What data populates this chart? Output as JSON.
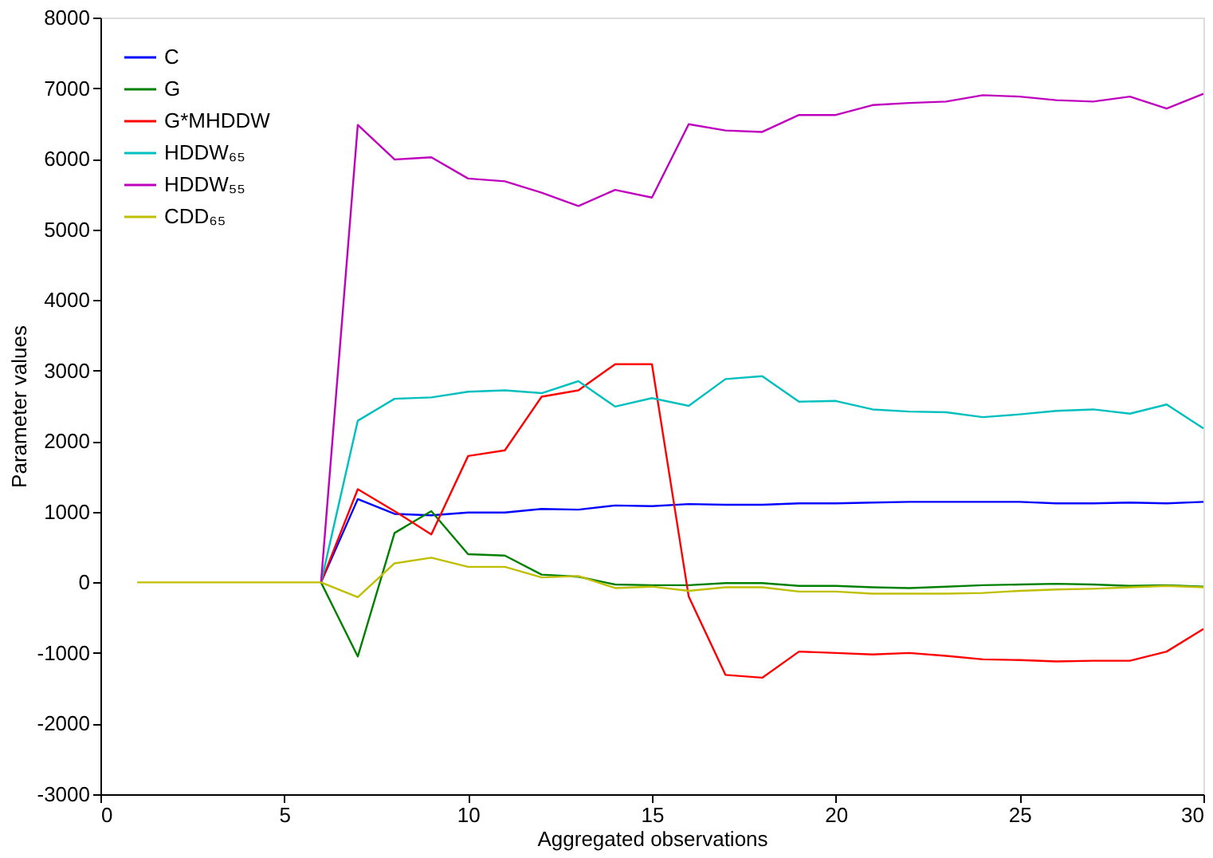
{
  "chart_data": {
    "type": "line",
    "xlabel": "Aggregated observations",
    "ylabel": "Parameter values",
    "x": [
      1,
      2,
      3,
      4,
      5,
      6,
      7,
      8,
      9,
      10,
      11,
      12,
      13,
      14,
      15,
      16,
      17,
      18,
      19,
      20,
      21,
      22,
      23,
      24,
      25,
      26,
      27,
      28,
      29,
      30
    ],
    "xlim": [
      0,
      30
    ],
    "xticks": [
      0,
      5,
      10,
      15,
      20,
      25,
      30
    ],
    "ylim": [
      -3000,
      8000
    ],
    "yticks": [
      -3000,
      -2000,
      -1000,
      0,
      1000,
      2000,
      3000,
      4000,
      5000,
      6000,
      7000,
      8000
    ],
    "grid": false,
    "legend": "top left",
    "line_style": "solid",
    "marker": "none",
    "series": [
      {
        "name": "C",
        "color": "#0000ff",
        "values": [
          null,
          null,
          null,
          null,
          null,
          0,
          1180,
          970,
          950,
          990,
          990,
          1040,
          1030,
          1090,
          1080,
          1110,
          1100,
          1100,
          1120,
          1120,
          1130,
          1140,
          1140,
          1140,
          1140,
          1120,
          1120,
          1130,
          1120,
          1140
        ]
      },
      {
        "name": "G",
        "color": "#008000",
        "values": [
          null,
          null,
          null,
          null,
          null,
          0,
          -1050,
          700,
          1010,
          400,
          380,
          110,
          80,
          -30,
          -40,
          -40,
          -10,
          -10,
          -50,
          -50,
          -70,
          -80,
          -60,
          -40,
          -30,
          -20,
          -30,
          -50,
          -40,
          -60
        ]
      },
      {
        "name": "G*MHDDW",
        "color": "#ff0000",
        "values": [
          null,
          null,
          null,
          null,
          null,
          0,
          1320,
          1010,
          680,
          1790,
          1870,
          2630,
          2720,
          3090,
          3090,
          -200,
          -1310,
          -1350,
          -980,
          -1000,
          -1020,
          -1000,
          -1040,
          -1090,
          -1100,
          -1120,
          -1110,
          -1110,
          -980,
          -660
        ]
      },
      {
        "name": "HDDW₆₅",
        "color": "#00bfbf",
        "values": [
          null,
          null,
          null,
          null,
          null,
          0,
          2290,
          2600,
          2620,
          2700,
          2720,
          2680,
          2850,
          2490,
          2610,
          2500,
          2880,
          2920,
          2560,
          2570,
          2450,
          2420,
          2410,
          2340,
          2380,
          2430,
          2450,
          2390,
          2520,
          2180
        ]
      },
      {
        "name": "HDDW₅₅",
        "color": "#bf00bf",
        "values": [
          null,
          null,
          null,
          null,
          null,
          0,
          6480,
          5990,
          6020,
          5720,
          5680,
          5520,
          5330,
          5560,
          5450,
          6490,
          6400,
          6380,
          6620,
          6620,
          6760,
          6790,
          6810,
          6900,
          6880,
          6830,
          6810,
          6880,
          6710,
          6920
        ]
      },
      {
        "name": "CDD₆₅",
        "color": "#bfbf00",
        "values": [
          0,
          0,
          0,
          0,
          0,
          0,
          -210,
          270,
          350,
          220,
          220,
          70,
          90,
          -80,
          -60,
          -120,
          -70,
          -70,
          -130,
          -130,
          -160,
          -160,
          -160,
          -150,
          -120,
          -100,
          -90,
          -70,
          -50,
          -70
        ]
      }
    ]
  }
}
